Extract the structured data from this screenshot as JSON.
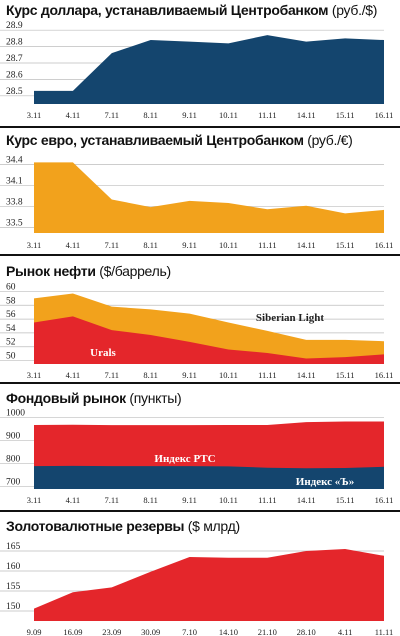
{
  "chart_data": [
    {
      "type": "area",
      "title": "Курс доллара, устанавливаемый Центробанком",
      "unit": "(руб./$)",
      "categories": [
        "3.11",
        "4.11",
        "7.11",
        "8.11",
        "9.11",
        "10.11",
        "11.11",
        "14.11",
        "15.11",
        "16.11"
      ],
      "yticks": [
        "28.5",
        "28.6",
        "28.7",
        "28.8",
        "28.9"
      ],
      "ylim": [
        28.45,
        28.95
      ],
      "series": [
        {
          "values": [
            28.53,
            28.53,
            28.76,
            28.84,
            28.83,
            28.82,
            28.87,
            28.83,
            28.85,
            28.84
          ]
        }
      ],
      "colors": {
        "fill": "#14456e"
      }
    },
    {
      "type": "area",
      "title": "Курс евро, устанавливаемый Центробанком",
      "unit": "(руб./€)",
      "categories": [
        "3.11",
        "4.11",
        "7.11",
        "8.11",
        "9.11",
        "10.11",
        "11.11",
        "14.11",
        "15.11",
        "16.11"
      ],
      "yticks": [
        "33.5",
        "33.8",
        "34.1",
        "34.4"
      ],
      "ylim": [
        33.42,
        34.55
      ],
      "series": [
        {
          "values": [
            34.43,
            34.43,
            33.9,
            33.79,
            33.88,
            33.85,
            33.76,
            33.81,
            33.7,
            33.75
          ]
        }
      ],
      "colors": {
        "fill": "#f2a21c"
      }
    },
    {
      "type": "area",
      "title": "Рынок нефти",
      "unit": "($/баррель)",
      "categories": [
        "3.11",
        "4.11",
        "7.11",
        "8.11",
        "9.11",
        "10.11",
        "11.11",
        "14.11",
        "15.11",
        "16.11"
      ],
      "yticks": [
        "50",
        "52",
        "54",
        "56",
        "58",
        "60"
      ],
      "ylim": [
        49.5,
        60.5
      ],
      "series": [
        {
          "name": "Siberian Light",
          "values": [
            59.0,
            59.7,
            57.8,
            57.4,
            56.8,
            55.5,
            54.3,
            53.0,
            53.0,
            52.8
          ]
        },
        {
          "name": "Urals",
          "values": [
            55.5,
            56.4,
            54.4,
            53.7,
            52.7,
            51.6,
            51.1,
            50.3,
            50.5,
            50.9
          ]
        }
      ],
      "colors": {
        "top": "#f2a21c",
        "bottom": "#e4262b"
      }
    },
    {
      "type": "area",
      "title": "Фондовый рынок",
      "unit": "(пункты)",
      "categories": [
        "3.11",
        "4.11",
        "7.11",
        "8.11",
        "9.11",
        "10.11",
        "11.11",
        "14.11",
        "15.11",
        "16.11"
      ],
      "yticks": [
        "700",
        "800",
        "900",
        "1000"
      ],
      "ylim": [
        690,
        1010
      ],
      "series": [
        {
          "name": "Индекс РТС",
          "values": [
            967,
            968,
            966,
            966,
            966,
            967,
            967,
            979,
            982,
            982
          ]
        },
        {
          "name": "Индекс «Ъ»",
          "values": [
            789,
            790,
            789,
            789,
            789,
            788,
            782,
            780,
            781,
            786
          ]
        }
      ],
      "colors": {
        "top": "#e4262b",
        "bottom": "#14456e"
      }
    },
    {
      "type": "area",
      "title": "Золотовалютные резервы",
      "unit": "($ млрд)",
      "categories": [
        "9.09",
        "16.09",
        "23.09",
        "30.09",
        "7.10",
        "14.10",
        "21.10",
        "28.10",
        "4.11",
        "11.11"
      ],
      "yticks": [
        "150",
        "155",
        "160",
        "165"
      ],
      "ylim": [
        147.5,
        167.5
      ],
      "series": [
        {
          "values": [
            150.6,
            154.7,
            155.9,
            159.8,
            163.5,
            163.3,
            163.3,
            165.0,
            165.5,
            163.8
          ]
        }
      ],
      "colors": {
        "fill": "#e4262b"
      }
    }
  ]
}
